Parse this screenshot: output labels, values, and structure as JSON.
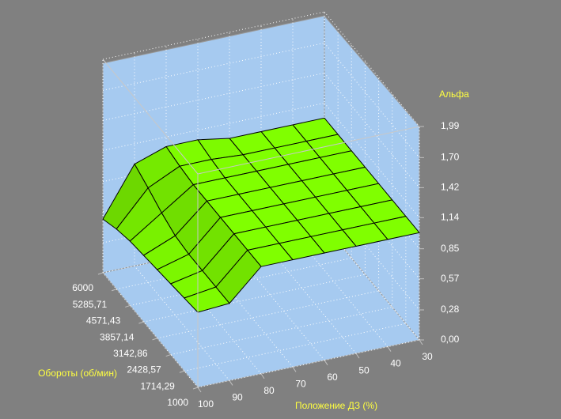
{
  "chart_data": {
    "type": "surface",
    "x_label": "Положение ДЗ (%)",
    "y_label": "Обороты (об/мин)",
    "z_label": "Альфа",
    "x": [
      100,
      90,
      80,
      70,
      60,
      50,
      40,
      30
    ],
    "y": [
      1000,
      1714.29,
      2428.57,
      3142.86,
      3857.14,
      4571.43,
      5285.71,
      6000
    ],
    "xlim": [
      100,
      30
    ],
    "ylim": [
      1000,
      6000
    ],
    "zlim": [
      0,
      1.99
    ],
    "xticks": [
      100,
      90,
      80,
      70,
      60,
      50,
      40,
      30
    ],
    "yticks": [
      1000,
      {
        "value": 1714.29,
        "label": "1714,29"
      },
      {
        "value": 2428.57,
        "label": "2428,57"
      },
      {
        "value": 3142.86,
        "label": "3142,86"
      },
      {
        "value": 3857.14,
        "label": "3857,14"
      },
      {
        "value": 4571.43,
        "label": "4571,43"
      },
      {
        "value": 5285.71,
        "label": "5285,71"
      },
      6000
    ],
    "zticks": [
      {
        "value": 0,
        "label": "0,00"
      },
      {
        "value": 0.28,
        "label": "0,28"
      },
      {
        "value": 0.57,
        "label": "0,57"
      },
      {
        "value": 0.85,
        "label": "0,85"
      },
      {
        "value": 1.14,
        "label": "1,14"
      },
      {
        "value": 1.42,
        "label": "1,42"
      },
      {
        "value": 1.7,
        "label": "1,70"
      },
      {
        "value": 1.99,
        "label": "1,99"
      }
    ],
    "values": [
      [
        0.7,
        0.72,
        1.0,
        1.0,
        1.0,
        1.0,
        1.0,
        1.0
      ],
      [
        0.68,
        0.72,
        1.0,
        1.0,
        1.0,
        1.0,
        1.0,
        1.0
      ],
      [
        0.66,
        0.72,
        1.0,
        1.0,
        1.0,
        1.0,
        1.0,
        1.0
      ],
      [
        0.64,
        0.72,
        1.0,
        1.0,
        1.0,
        1.0,
        1.0,
        1.0
      ],
      [
        0.62,
        0.74,
        1.0,
        1.0,
        1.0,
        1.0,
        1.0,
        1.0
      ],
      [
        0.6,
        0.8,
        1.0,
        1.0,
        1.0,
        1.0,
        1.0,
        1.0
      ],
      [
        0.56,
        0.88,
        1.02,
        1.02,
        1.0,
        1.0,
        1.0,
        1.0
      ],
      [
        0.5,
        0.95,
        1.05,
        1.05,
        1.0,
        1.0,
        1.0,
        1.0
      ]
    ],
    "color": "#80ff00",
    "grid": true
  }
}
